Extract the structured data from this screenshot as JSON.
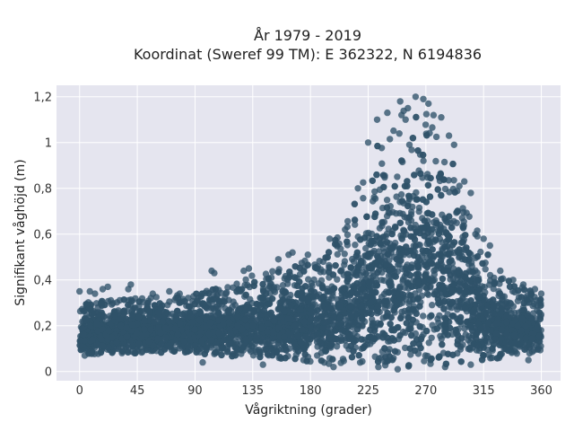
{
  "chart_data": {
    "type": "scatter",
    "title": "År 1979 - 2019",
    "subtitle": "Koordinat (Sweref 99 TM): E 362322, N 6194836",
    "xlabel": "Vågriktning (grader)",
    "ylabel": "Signifikant våghöjd (m)",
    "xlim": [
      -18,
      375
    ],
    "ylim": [
      -0.04,
      1.25
    ],
    "x_ticks": [
      0,
      45,
      90,
      135,
      180,
      225,
      270,
      315,
      360
    ],
    "x_tick_labels": [
      "0",
      "45",
      "90",
      "135",
      "180",
      "225",
      "270",
      "315",
      "360"
    ],
    "y_ticks": [
      0,
      0.2,
      0.4,
      0.6,
      0.8,
      1.0,
      1.2
    ],
    "y_tick_labels": [
      "0",
      "0,2",
      "0,4",
      "0,6",
      "0,8",
      "1",
      "1,2"
    ],
    "grid": true,
    "legend": "none",
    "colors": {
      "marker": "#2f5269",
      "plot_bg": "#e5e5ef",
      "grid": "#ffffff"
    },
    "envelope": {
      "x": [
        0,
        20,
        45,
        70,
        90,
        110,
        135,
        160,
        180,
        200,
        215,
        225,
        240,
        255,
        265,
        275,
        285,
        300,
        315,
        330,
        345,
        360
      ],
      "min": [
        0.07,
        0.08,
        0.08,
        0.08,
        0.08,
        0.07,
        0.06,
        0.05,
        0.04,
        0.03,
        0.03,
        0.02,
        0.02,
        0.02,
        0.02,
        0.03,
        0.03,
        0.04,
        0.05,
        0.06,
        0.07,
        0.08
      ],
      "max": [
        0.3,
        0.31,
        0.32,
        0.33,
        0.34,
        0.37,
        0.42,
        0.47,
        0.5,
        0.58,
        0.74,
        0.92,
        1.08,
        1.15,
        1.17,
        1.12,
        1.0,
        0.8,
        0.55,
        0.42,
        0.37,
        0.33
      ]
    },
    "outliers": [
      {
        "x": 0,
        "y": 0.35
      },
      {
        "x": 8,
        "y": 0.35
      },
      {
        "x": 12,
        "y": 0.34
      },
      {
        "x": 18,
        "y": 0.36
      },
      {
        "x": 22,
        "y": 0.37
      },
      {
        "x": 38,
        "y": 0.36
      },
      {
        "x": 40,
        "y": 0.38
      },
      {
        "x": 57,
        "y": 0.34
      },
      {
        "x": 70,
        "y": 0.35
      },
      {
        "x": 78,
        "y": 0.34
      },
      {
        "x": 103,
        "y": 0.44
      },
      {
        "x": 105,
        "y": 0.43
      },
      {
        "x": 128,
        "y": 0.44
      },
      {
        "x": 132,
        "y": 0.45
      },
      {
        "x": 155,
        "y": 0.49
      },
      {
        "x": 163,
        "y": 0.51
      },
      {
        "x": 166,
        "y": 0.52
      },
      {
        "x": 178,
        "y": 0.51
      },
      {
        "x": 195,
        "y": 0.58
      },
      {
        "x": 207,
        "y": 0.62
      },
      {
        "x": 217,
        "y": 0.8
      },
      {
        "x": 225,
        "y": 1.0
      },
      {
        "x": 232,
        "y": 1.1
      },
      {
        "x": 240,
        "y": 1.13
      },
      {
        "x": 250,
        "y": 1.18
      },
      {
        "x": 256,
        "y": 1.15
      },
      {
        "x": 262,
        "y": 1.2
      },
      {
        "x": 268,
        "y": 1.19
      },
      {
        "x": 272,
        "y": 1.17
      },
      {
        "x": 276,
        "y": 1.12
      },
      {
        "x": 282,
        "y": 1.11
      },
      {
        "x": 288,
        "y": 1.03
      },
      {
        "x": 292,
        "y": 0.99
      },
      {
        "x": 300,
        "y": 0.83
      },
      {
        "x": 305,
        "y": 0.78
      },
      {
        "x": 315,
        "y": 0.58
      },
      {
        "x": 320,
        "y": 0.55
      },
      {
        "x": 328,
        "y": 0.44
      },
      {
        "x": 338,
        "y": 0.4
      },
      {
        "x": 346,
        "y": 0.38
      },
      {
        "x": 355,
        "y": 0.36
      },
      {
        "x": 360,
        "y": 0.34
      },
      {
        "x": 96,
        "y": 0.04
      },
      {
        "x": 143,
        "y": 0.03
      },
      {
        "x": 198,
        "y": 0.02
      },
      {
        "x": 248,
        "y": 0.01
      },
      {
        "x": 233,
        "y": 0.02
      },
      {
        "x": 285,
        "y": 0.02
      },
      {
        "x": 305,
        "y": 0.03
      },
      {
        "x": 350,
        "y": 0.05
      },
      {
        "x": 4,
        "y": 0.07
      },
      {
        "x": 60,
        "y": 0.09
      }
    ]
  }
}
